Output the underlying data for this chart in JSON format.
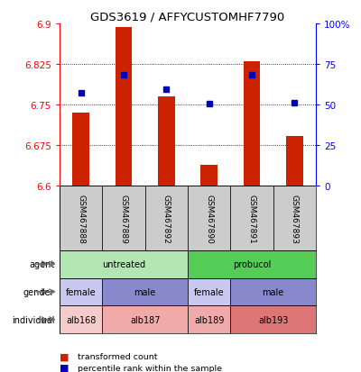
{
  "title": "GDS3619 / AFFYCUSTOMHF7790",
  "samples": [
    "GSM467888",
    "GSM467889",
    "GSM467892",
    "GSM467890",
    "GSM467891",
    "GSM467893"
  ],
  "red_values": [
    6.735,
    6.893,
    6.765,
    6.638,
    6.83,
    6.692
  ],
  "blue_values": [
    6.771,
    6.805,
    6.778,
    6.752,
    6.805,
    6.754
  ],
  "y_min": 6.6,
  "y_max": 6.9,
  "y_ticks_left": [
    6.6,
    6.675,
    6.75,
    6.825,
    6.9
  ],
  "y_ticks_right": [
    0,
    25,
    50,
    75,
    100
  ],
  "agent_groups": [
    {
      "label": "untreated",
      "cols": [
        0,
        1,
        2
      ],
      "color": "#b3e6b3"
    },
    {
      "label": "probucol",
      "cols": [
        3,
        4,
        5
      ],
      "color": "#55cc55"
    }
  ],
  "gender_groups": [
    {
      "label": "female",
      "cols": [
        0
      ],
      "color": "#c8c8f0"
    },
    {
      "label": "male",
      "cols": [
        1,
        2
      ],
      "color": "#8888cc"
    },
    {
      "label": "female",
      "cols": [
        3
      ],
      "color": "#c8c8f0"
    },
    {
      "label": "male",
      "cols": [
        4,
        5
      ],
      "color": "#8888cc"
    }
  ],
  "individual_groups": [
    {
      "label": "alb168",
      "cols": [
        0
      ],
      "color": "#f5cccc"
    },
    {
      "label": "alb187",
      "cols": [
        1,
        2
      ],
      "color": "#f0aaaa"
    },
    {
      "label": "alb189",
      "cols": [
        3
      ],
      "color": "#f0aaaa"
    },
    {
      "label": "alb193",
      "cols": [
        4,
        5
      ],
      "color": "#dd7777"
    }
  ],
  "row_labels": [
    "agent",
    "gender",
    "individual"
  ],
  "legend_red": "transformed count",
  "legend_blue": "percentile rank within the sample",
  "bar_color": "#cc2200",
  "dot_color": "#0000bb",
  "bar_base": 6.6,
  "sample_bg": "#cccccc"
}
